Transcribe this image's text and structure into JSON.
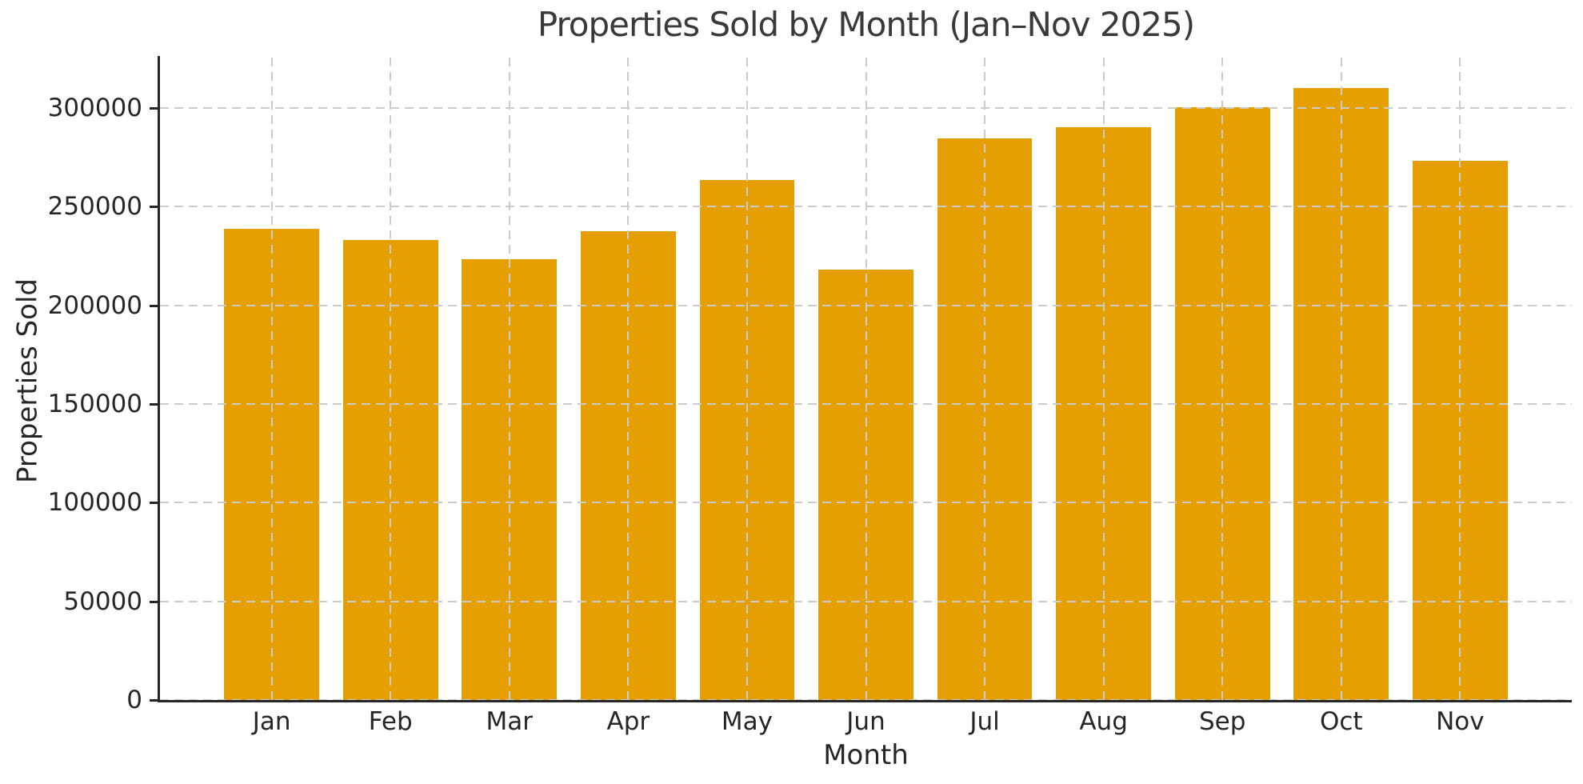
{
  "figure": {
    "background_color": "#FFFFFF",
    "title_color": "#3A3A3A",
    "text_color": "#262626",
    "spine_color": "#262626",
    "grid_color": "#CBCBCB"
  },
  "chart_data": {
    "type": "bar",
    "title": "Properties Sold by Month (Jan–Nov 2025)",
    "xlabel": "Month",
    "ylabel": "Properties Sold",
    "categories": [
      "Jan",
      "Feb",
      "Mar",
      "Apr",
      "May",
      "Jun",
      "Jul",
      "Aug",
      "Sep",
      "Oct",
      "Nov"
    ],
    "values": [
      239000,
      233000,
      223500,
      237500,
      263500,
      218000,
      284500,
      290500,
      300500,
      310000,
      273500
    ],
    "series_name": "Properties Sold",
    "bar_color": "#E69F00",
    "ylim": [
      0,
      325600
    ],
    "yticks": [
      0,
      50000,
      100000,
      150000,
      200000,
      250000,
      300000
    ],
    "ytick_labels": [
      "0",
      "50000",
      "100000",
      "150000",
      "200000",
      "250000",
      "300000"
    ],
    "grid": "both axes, dashed light gray, drawn above bars",
    "legend": "none",
    "spines": "left and bottom only, dark"
  }
}
